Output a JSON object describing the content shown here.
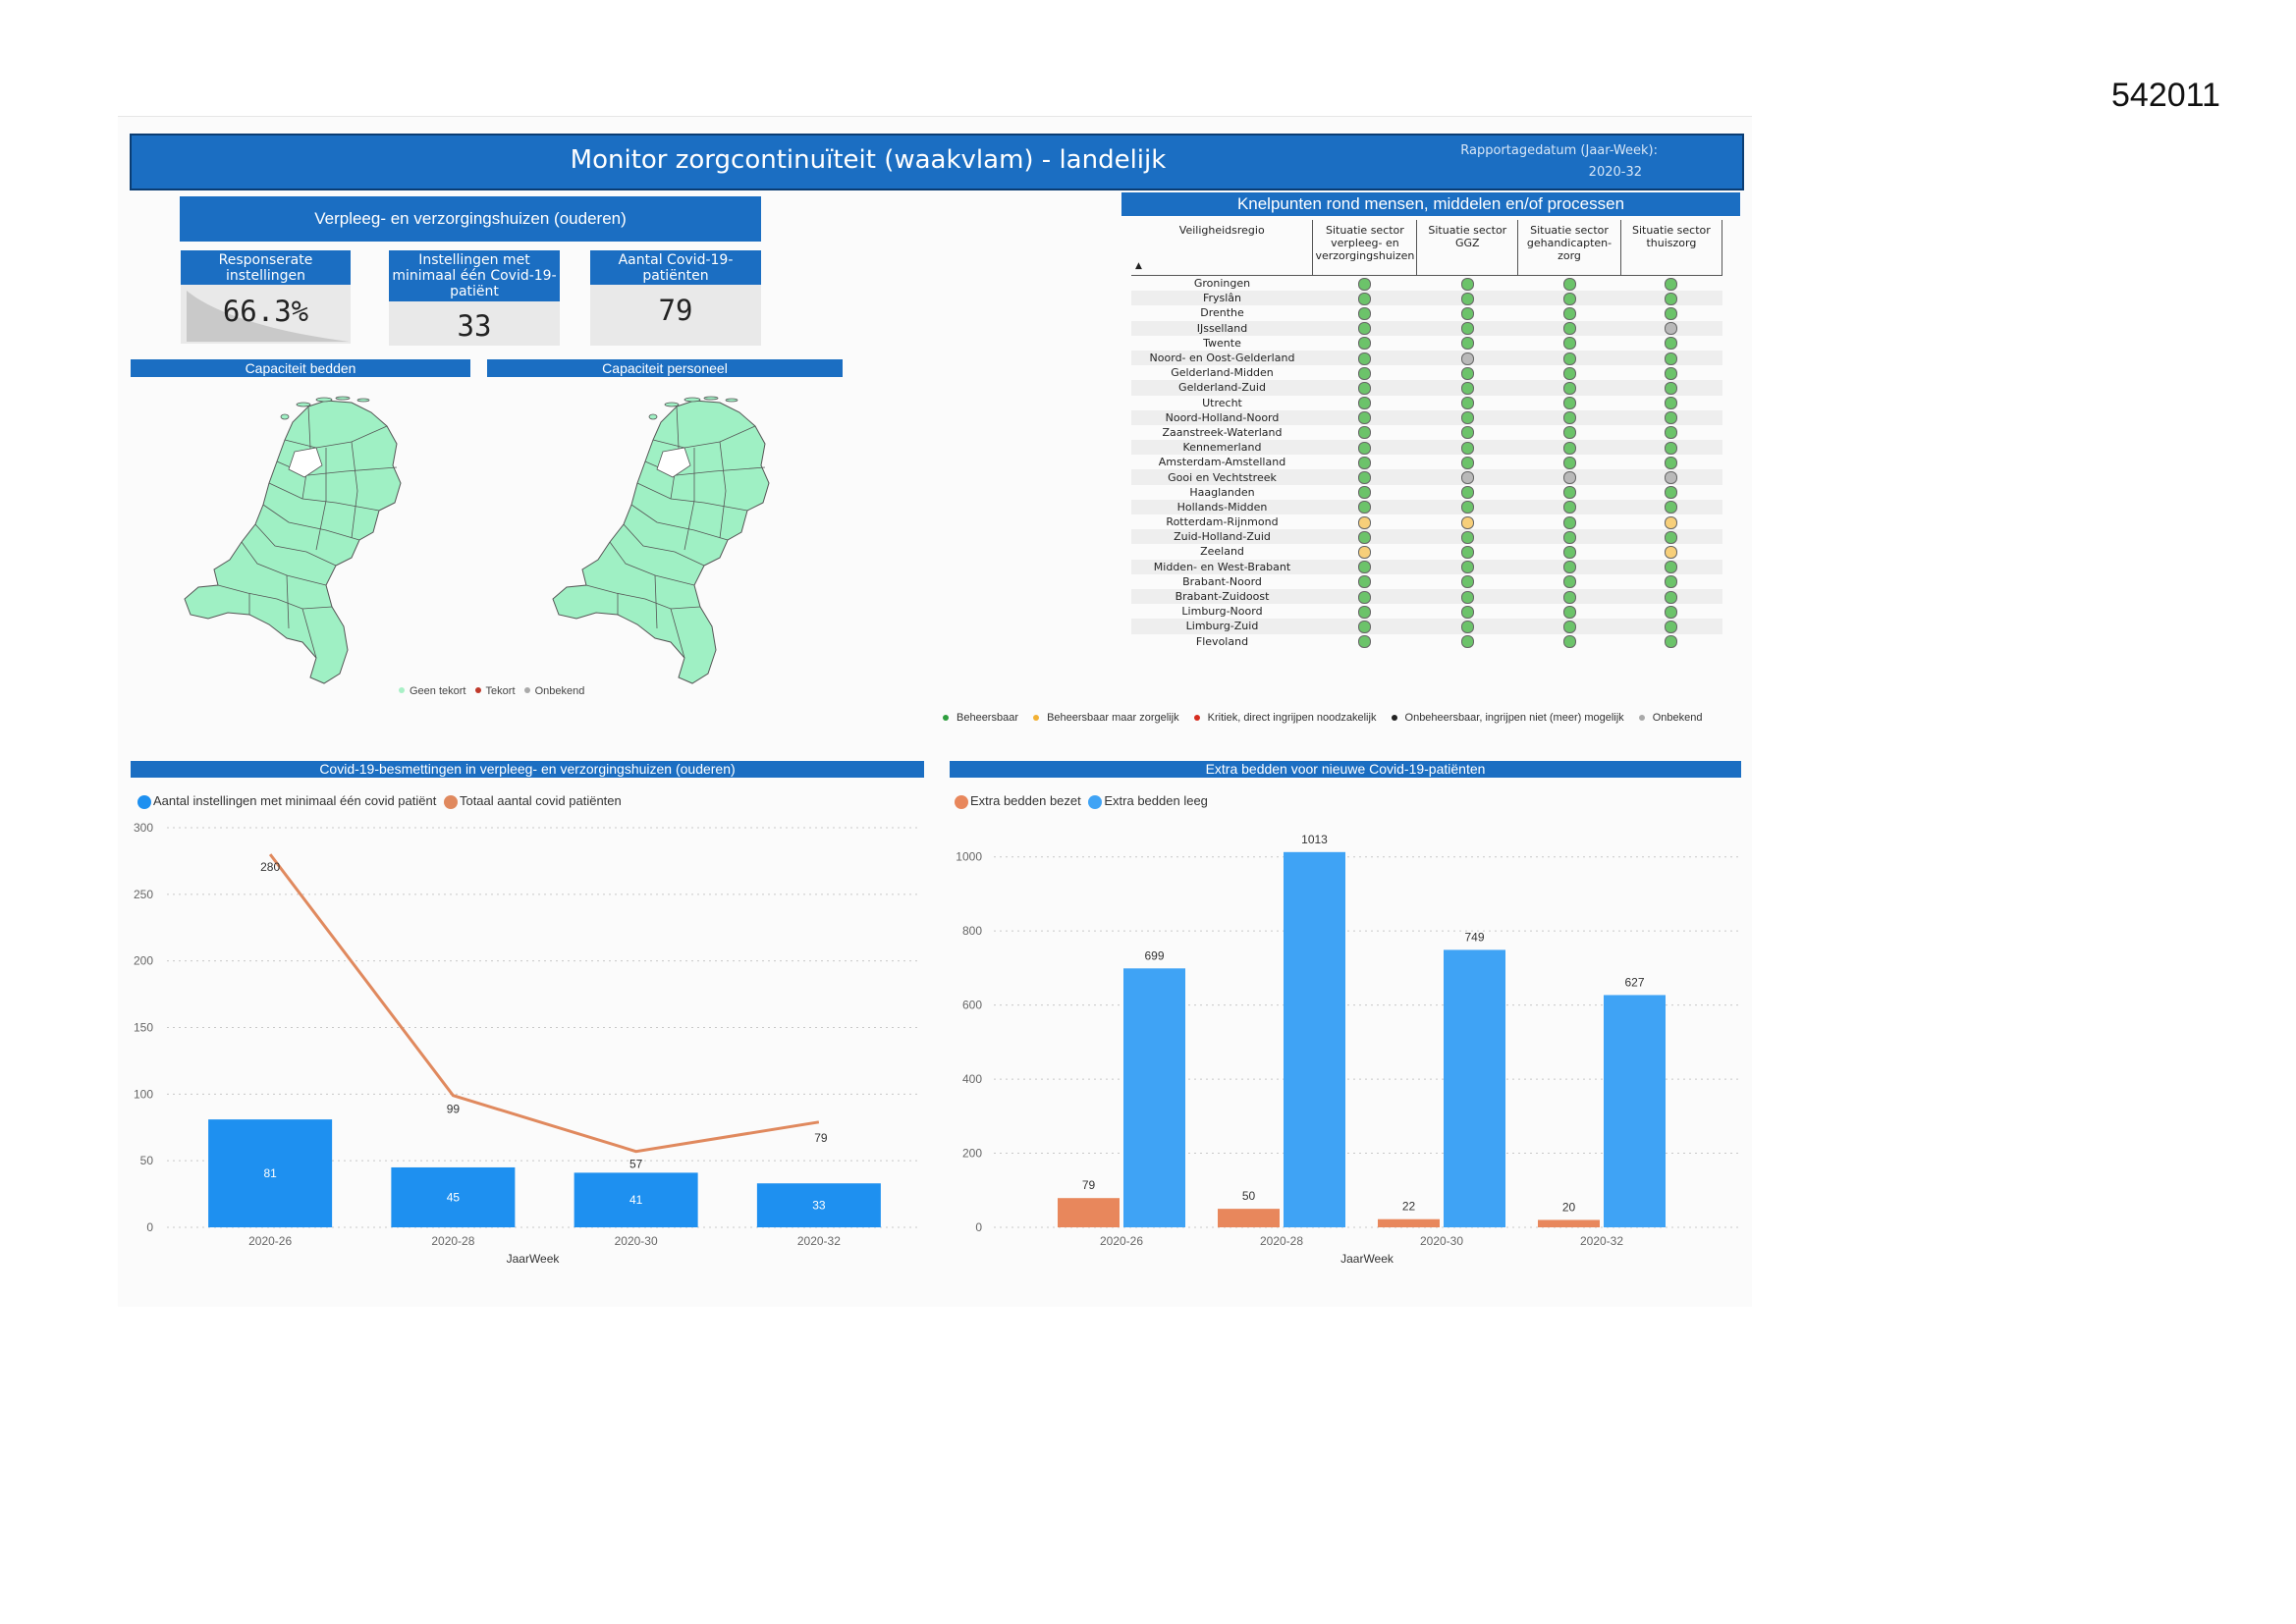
{
  "page_number": "542011",
  "header": {
    "title": "Monitor zorgcontinuïteit (waakvlam) - landelijk",
    "date_label": "Rapportagedatum (Jaar-Week):",
    "date_value": "2020-32"
  },
  "kpis": {
    "section_title": "Verpleeg- en verzorgingshuizen (ouderen)",
    "response_label": "Responserate instellingen",
    "response_value": "66.3%",
    "response_fraction": 0.663,
    "facilities_label": "Instellingen met minimaal één Covid-19-patiënt",
    "facilities_value": "33",
    "patients_label": "Aantal Covid-19-patiënten",
    "patients_value": "79"
  },
  "capacity": {
    "beds_title": "Capaciteit bedden",
    "staff_title": "Capaciteit personeel",
    "legend": [
      {
        "label": "Geen tekort",
        "color": "#a8f0c6"
      },
      {
        "label": "Tekort",
        "color": "#c0392b"
      },
      {
        "label": "Onbekend",
        "color": "#aaaaaa"
      }
    ],
    "map_fill": "#9ff0c4"
  },
  "knelpunten": {
    "title": "Knelpunten rond mensen, middelen en/of processen",
    "columns": [
      "Veiligheidsregio",
      "Situatie sector verpleeg- en verzorgingshuizen",
      "Situatie sector GGZ",
      "Situatie sector gehandicapten-zorg",
      "Situatie sector thuiszorg"
    ],
    "rows": [
      {
        "region": "Groningen",
        "status": [
          "g",
          "g",
          "g",
          "g"
        ]
      },
      {
        "region": "Fryslân",
        "status": [
          "g",
          "g",
          "g",
          "g"
        ]
      },
      {
        "region": "Drenthe",
        "status": [
          "g",
          "g",
          "g",
          "g"
        ]
      },
      {
        "region": "IJsselland",
        "status": [
          "g",
          "g",
          "g",
          "u"
        ]
      },
      {
        "region": "Twente",
        "status": [
          "g",
          "g",
          "g",
          "g"
        ]
      },
      {
        "region": "Noord- en Oost-Gelderland",
        "status": [
          "g",
          "u",
          "g",
          "g"
        ]
      },
      {
        "region": "Gelderland-Midden",
        "status": [
          "g",
          "g",
          "g",
          "g"
        ]
      },
      {
        "region": "Gelderland-Zuid",
        "status": [
          "g",
          "g",
          "g",
          "g"
        ]
      },
      {
        "region": "Utrecht",
        "status": [
          "g",
          "g",
          "g",
          "g"
        ]
      },
      {
        "region": "Noord-Holland-Noord",
        "status": [
          "g",
          "g",
          "g",
          "g"
        ]
      },
      {
        "region": "Zaanstreek-Waterland",
        "status": [
          "g",
          "g",
          "g",
          "g"
        ]
      },
      {
        "region": "Kennemerland",
        "status": [
          "g",
          "g",
          "g",
          "g"
        ]
      },
      {
        "region": "Amsterdam-Amstelland",
        "status": [
          "g",
          "g",
          "g",
          "g"
        ]
      },
      {
        "region": "Gooi en Vechtstreek",
        "status": [
          "g",
          "u",
          "u",
          "u"
        ]
      },
      {
        "region": "Haaglanden",
        "status": [
          "g",
          "g",
          "g",
          "g"
        ]
      },
      {
        "region": "Hollands-Midden",
        "status": [
          "g",
          "g",
          "g",
          "g"
        ]
      },
      {
        "region": "Rotterdam-Rijnmond",
        "status": [
          "y",
          "y",
          "g",
          "y"
        ]
      },
      {
        "region": "Zuid-Holland-Zuid",
        "status": [
          "g",
          "g",
          "g",
          "g"
        ]
      },
      {
        "region": "Zeeland",
        "status": [
          "y",
          "g",
          "g",
          "y"
        ]
      },
      {
        "region": "Midden- en West-Brabant",
        "status": [
          "g",
          "g",
          "g",
          "g"
        ]
      },
      {
        "region": "Brabant-Noord",
        "status": [
          "g",
          "g",
          "g",
          "g"
        ]
      },
      {
        "region": "Brabant-Zuidoost",
        "status": [
          "g",
          "g",
          "g",
          "g"
        ]
      },
      {
        "region": "Limburg-Noord",
        "status": [
          "g",
          "g",
          "g",
          "g"
        ]
      },
      {
        "region": "Limburg-Zuid",
        "status": [
          "g",
          "g",
          "g",
          "g"
        ]
      },
      {
        "region": "Flevoland",
        "status": [
          "g",
          "g",
          "g",
          "g"
        ]
      }
    ],
    "status_colors": {
      "g": "#6cc36a",
      "y": "#f7cf7a",
      "r": "#d62d20",
      "b": "#222222",
      "u": "#b9b9b9"
    },
    "legend": [
      {
        "label": "Beheersbaar",
        "color": "#2e9e3e"
      },
      {
        "label": "Beheersbaar maar zorgelijk",
        "color": "#f2b134"
      },
      {
        "label": "Kritiek, direct ingrijpen noodzakelijk",
        "color": "#d62d20"
      },
      {
        "label": "Onbeheersbaar, ingrijpen niet (meer) mogelijk",
        "color": "#222222"
      },
      {
        "label": "Onbekend",
        "color": "#aaaaaa"
      }
    ]
  },
  "chart_data": [
    {
      "type": "bar",
      "title": "Covid-19-besmettingen in verpleeg- en verzorgingshuizen (ouderen)",
      "xlabel": "JaarWeek",
      "ylabel": "",
      "categories": [
        "2020-26",
        "2020-28",
        "2020-30",
        "2020-32"
      ],
      "ylim": [
        0,
        300
      ],
      "yticks": [
        0,
        50,
        100,
        150,
        200,
        250,
        300
      ],
      "grid": true,
      "legend_position": "top-left",
      "series": [
        {
          "name": "Aantal instellingen met minimaal één covid patiënt",
          "type": "bar",
          "color": "#1e90f0",
          "values": [
            81,
            45,
            41,
            33
          ]
        },
        {
          "name": "Totaal aantal covid patiënten",
          "type": "line",
          "color": "#e0895e",
          "values": [
            280,
            99,
            57,
            79
          ]
        }
      ]
    },
    {
      "type": "bar",
      "title": "Extra bedden voor nieuwe Covid-19-patiënten",
      "xlabel": "JaarWeek",
      "ylabel": "",
      "categories": [
        "2020-26",
        "2020-28",
        "2020-30",
        "2020-32"
      ],
      "ylim": [
        0,
        1100
      ],
      "yticks": [
        0,
        200,
        400,
        600,
        800,
        1000
      ],
      "grid": true,
      "legend_position": "top-left",
      "series": [
        {
          "name": "Extra bedden bezet",
          "color": "#e8875c",
          "values": [
            79,
            50,
            22,
            20
          ]
        },
        {
          "name": "Extra bedden leeg",
          "color": "#3fa3f5",
          "values": [
            699,
            1013,
            749,
            627
          ]
        }
      ]
    }
  ]
}
